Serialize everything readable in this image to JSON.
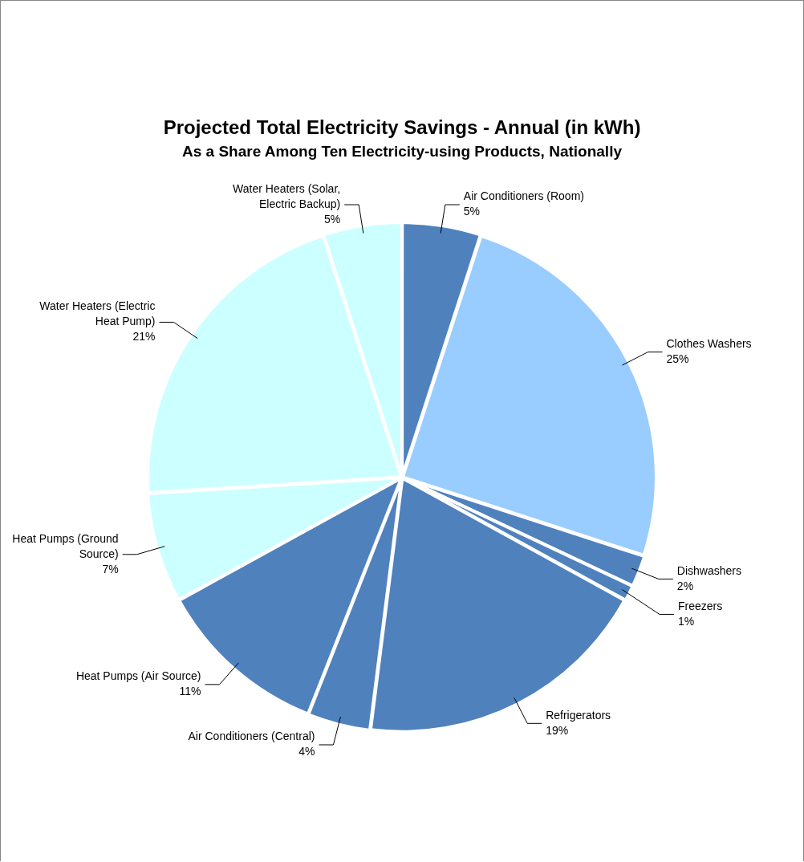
{
  "chart_data": {
    "type": "pie",
    "title": "Projected Total Electricity Savings - Annual (in kWh)",
    "subtitle": "As a Share Among Ten Electricity-using Products, Nationally",
    "categories": [
      "Air Conditioners (Room)",
      "Clothes Washers",
      "Dishwashers",
      "Freezers",
      "Refrigerators",
      "Air Conditioners (Central)",
      "Heat Pumps (Air Source)",
      "Heat Pumps (Ground Source)",
      "Water Heaters (Electric Heat Pump)",
      "Water Heaters (Solar, Electric Backup)"
    ],
    "values": [
      5,
      25,
      2,
      1,
      19,
      4,
      11,
      7,
      21,
      5
    ],
    "value_labels": [
      "5%",
      "25%",
      "2%",
      "1%",
      "19%",
      "4%",
      "11%",
      "7%",
      "21%",
      "5%"
    ],
    "colors": [
      "#4f81bd",
      "#99ccff",
      "#4f81bd",
      "#4f81bd",
      "#4f81bd",
      "#4f81bd",
      "#4f81bd",
      "#ccffff",
      "#ccffff",
      "#ccffff"
    ],
    "legend": false
  }
}
